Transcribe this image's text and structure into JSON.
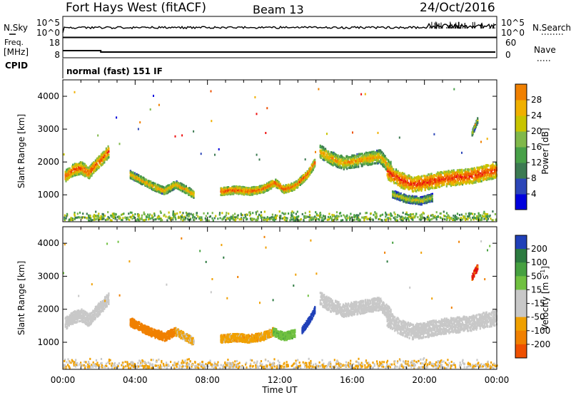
{
  "header": {
    "station": "Fort Hays West (fitACF)",
    "beam": "Beam 13",
    "date": "24/Oct/2016"
  },
  "top_panels": {
    "nsky_label": "N.Sky",
    "nsky_ticks": [
      "10^5",
      "10^0"
    ],
    "nsearch_label": "N.Search",
    "nsearch_ticks": [
      "10^5",
      "10^0"
    ],
    "freq_label": "Freq.",
    "freq_unit": "[MHz]",
    "freq_ticks": [
      "18",
      "8"
    ],
    "nave_label": "Nave",
    "nave_ticks": [
      "60",
      "0"
    ],
    "cpid_label": "CPID",
    "cpid_text": "normal (fast) 151 IF"
  },
  "colors": {
    "power_scale": [
      "#0000dd",
      "#2c46b8",
      "#3c7a52",
      "#48a048",
      "#80b84a",
      "#c8c400",
      "#f0b000",
      "#f08000",
      "#ee5000",
      "#ee1010"
    ],
    "velocity_scale": [
      "#2040b8",
      "#2c7a40",
      "#46a040",
      "#70c040",
      "#c8c8c8",
      "#c8c8c8",
      "#f0a000",
      "#f08000",
      "#ee5000",
      "#e01010"
    ]
  },
  "chart_data": [
    {
      "type": "heatmap",
      "panel": "power",
      "ylabel": "Slant Range [km]",
      "ylim": [
        180,
        4500
      ],
      "xlim": [
        0,
        24
      ],
      "yticks": [
        "1000",
        "2000",
        "3000",
        "4000"
      ],
      "colorbar_label": "Power [dB]",
      "colorbar_ticks": [
        "4",
        "8",
        "12",
        "16",
        "20",
        "24",
        "28"
      ],
      "colorbar_range": [
        0,
        30
      ],
      "echo_bands": [
        {
          "x": [
            0.1,
            0.6,
            1.0,
            1.4,
            1.8,
            2.1,
            2.5
          ],
          "y": [
            1600,
            1800,
            1850,
            1700,
            1950,
            2100,
            2350
          ],
          "width": 260,
          "value": 20
        },
        {
          "x": [
            3.7,
            4.4,
            5.0,
            5.6,
            6.2,
            6.8,
            7.2
          ],
          "y": [
            1650,
            1450,
            1280,
            1150,
            1350,
            1180,
            1050
          ],
          "width": 160,
          "value": 16
        },
        {
          "x": [
            8.7,
            9.5,
            10.3,
            11.0,
            11.7,
            12.2,
            12.8,
            13.5,
            13.9
          ],
          "y": [
            1130,
            1180,
            1140,
            1200,
            1400,
            1200,
            1300,
            1650,
            2000
          ],
          "width": 160,
          "value": 20
        },
        {
          "x": [
            14.2,
            14.8,
            15.5,
            16.5,
            17.5,
            18.1
          ],
          "y": [
            2350,
            2150,
            2000,
            2100,
            2200,
            1850
          ],
          "width": 280,
          "value": 16
        },
        {
          "x": [
            17.9,
            18.6,
            19.3,
            20.0,
            20.8,
            21.6,
            22.5,
            23.3,
            23.95
          ],
          "y": [
            1750,
            1500,
            1350,
            1400,
            1500,
            1550,
            1600,
            1700,
            1780
          ],
          "width": 330,
          "value": 22
        },
        {
          "x": [
            18.2,
            19.0,
            19.8,
            20.4
          ],
          "y": [
            1050,
            900,
            850,
            950
          ],
          "width": 160,
          "value": 12
        },
        {
          "x": [
            22.6,
            22.9
          ],
          "y": [
            2900,
            3300
          ],
          "width": 120,
          "value": 12
        }
      ],
      "ground_scatter": {
        "x": [
          0.0,
          24.0
        ],
        "y": [
          250,
          550
        ],
        "value": 12
      }
    },
    {
      "type": "heatmap",
      "panel": "velocity",
      "ylabel": "Slant Range [km]",
      "ylim": [
        180,
        4500
      ],
      "xlim": [
        0,
        24
      ],
      "yticks": [
        "1000",
        "2000",
        "3000",
        "4000"
      ],
      "xlabel": "Time UT",
      "xticks": [
        "00:00",
        "04:00",
        "08:00",
        "12:00",
        "16:00",
        "20:00",
        "00:00"
      ],
      "xtick_hours": [
        0,
        4,
        8,
        12,
        16,
        20,
        24
      ],
      "colorbar_label": "Velocity [m s^-1]",
      "colorbar_ticks": [
        "200",
        "100",
        "50",
        "15",
        "-15",
        "-50",
        "-100",
        "-200"
      ],
      "echo_bands": [
        {
          "x": [
            0.1,
            0.6,
            1.0,
            1.4,
            1.8,
            2.1,
            2.5
          ],
          "y": [
            1600,
            1800,
            1850,
            1700,
            1950,
            2100,
            2350
          ],
          "width": 260,
          "value": 0
        },
        {
          "x": [
            3.7,
            4.4,
            5.0,
            5.6,
            6.2
          ],
          "y": [
            1650,
            1450,
            1300,
            1200,
            1350
          ],
          "width": 180,
          "value": -150
        },
        {
          "x": [
            6.2,
            6.8,
            7.2
          ],
          "y": [
            1350,
            1180,
            1050
          ],
          "width": 160,
          "value": -60
        },
        {
          "x": [
            8.7,
            9.5,
            10.3,
            11.0,
            11.6
          ],
          "y": [
            1130,
            1180,
            1140,
            1200,
            1350
          ],
          "width": 170,
          "value": -75
        },
        {
          "x": [
            11.6,
            12.2,
            12.8
          ],
          "y": [
            1350,
            1200,
            1300
          ],
          "width": 170,
          "value": 40
        },
        {
          "x": [
            13.2,
            13.6,
            13.9
          ],
          "y": [
            1400,
            1700,
            2000
          ],
          "width": 140,
          "value": 250
        },
        {
          "x": [
            14.2,
            14.8,
            15.5,
            16.5,
            17.5,
            18.1
          ],
          "y": [
            2350,
            2150,
            2000,
            2100,
            2200,
            1850
          ],
          "width": 280,
          "value": 0
        },
        {
          "x": [
            17.9,
            18.6,
            19.3,
            20.0,
            20.8,
            21.6,
            22.5,
            23.3,
            23.95
          ],
          "y": [
            1750,
            1500,
            1350,
            1400,
            1500,
            1550,
            1600,
            1700,
            1780
          ],
          "width": 330,
          "value": 0
        },
        {
          "x": [
            22.6,
            22.9
          ],
          "y": [
            3000,
            3300
          ],
          "width": 140,
          "value": -200
        }
      ],
      "ground_scatter": {
        "x": [
          0.0,
          24.0
        ],
        "y": [
          250,
          550
        ],
        "value": -50
      }
    }
  ]
}
